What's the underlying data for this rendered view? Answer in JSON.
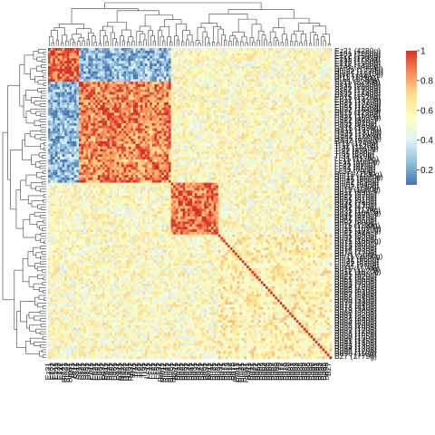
{
  "chart_data": {
    "type": "heatmap",
    "title": "",
    "xlabel": "",
    "ylabel": "",
    "colorbar": {
      "range": [
        0,
        1
      ],
      "ticks": [
        "0.2",
        "0.4",
        "0.6",
        "0.8",
        "1"
      ],
      "colors": [
        "#4575b4",
        "#91bfdb",
        "#e0f3f8",
        "#ffffbf",
        "#fee090",
        "#fc8d59",
        "#d73027"
      ]
    },
    "row_labels_visible": [
      "Ez21 (4280g)",
      "Ez31 (1860g)",
      "Ez22 (1590g)",
      "Ez11 (1700g)",
      "Ez32 (1560g)",
      "Ez12 (1500g)",
      "Ez41 (1420g)",
      "Bm21 (1350g)",
      "Bm22 (1230g)",
      "Bm31 (1010g)",
      "Bf11 (1840g)",
      "Bf12 (1730g)",
      "Ss11 (2290g)",
      "Ss12 (2130g)",
      "Ss21 (2060g)",
      "Ss22 (1980g)",
      "Ss31 (1780g)",
      "Ss32 (1640g)",
      "Ep11 (1520g)",
      "Ep12 (1410g)",
      "Ep21 (1370g)",
      "Ep22 (1280g)",
      "Ep31 (1150g)",
      "Ep32 (1040g)",
      "Pa11 (1290g)",
      "Pa12 (1180g)",
      "Pa21 (1030g)",
      "Pa22 (980g)",
      "Pa31 (910g)",
      "Pa32 (860g)",
      "Ra11 (1620g)",
      "Ra12 (1470g)",
      "Ra21 (1310g)",
      "Ra22 (1190g)",
      "Ra31 (1060g)",
      "Ra32 (970g)",
      "Tr11 (1240g)",
      "Tr12 (1120g)",
      "Tr21 (1010g)",
      "Tr22 (930g)",
      "Tr31 (880g)",
      "Tr32 (820g)",
      "Lc11 (1170g)",
      "Lc12 (1060g)",
      "Lc21 (990g)",
      "Lc22 (910g)",
      "Lc31 (850g)",
      "Lc32 (790g)",
      "Bm11 (1130g)",
      "Bm12 (1020g)",
      "Bm41 (960g)",
      "Bm42 (890g)",
      "Bm51 (840g)",
      "Bm52 (780g)",
      "Bb11 (1080g)",
      "Bb12 (990g)",
      "Bb21 (920g)",
      "Bb22 (870g)",
      "Bb31 (810g)",
      "Bb32 (760g)",
      "Bb41 (710g)",
      "Bb42 (670g)",
      "Bd31 (1120g)",
      "Bd32 (1040g)",
      "Bd41 (980g)",
      "Bd42 (910g)",
      "Bd51 (850g)",
      "Bd52 (800g)",
      "Bu11 (1190g)",
      "Bu12 (1090g)",
      "Bu21 (1010g)",
      "Bu22 (940g)",
      "Bu31 (880g)",
      "Bu32 (820g)",
      "Bd71 (1060g)",
      "Bd72 (980g)",
      "Bd73 (900g)",
      "Bd74 (830g)",
      "Bd75 (770g)",
      "Bd76 (720g)",
      "Pm11 (1050g)",
      "Pm12 (960g)",
      "Pm21 (890g)",
      "Pm22 (820g)",
      "Pm31 (770g)",
      "Bd11 (1170g)",
      "Bd12 (1070g)",
      "Bd21 (990g)",
      "Bd22 (920g)",
      "Bd61 (860g)",
      "Bd62 (800g)",
      "Bd63 (750g)",
      "Bd64 (700g)",
      "Bd65 (650g)",
      "Bd66 (610g)",
      "Bd67 (580g)",
      "Bd68 (540g)",
      "Bd69 (510g)",
      "Bd70 (480g)",
      "Bd77 (440g)",
      "Bd78 (410g)",
      "Bd79 (380g)",
      "Bd80 (350g)",
      "Bd81 (320g)",
      "Bd82 (290g)",
      "Bd83 (260g)",
      "Bd84 (230g)",
      "Bd85 (200g)",
      "Bd86 (180g)",
      "Bd87 (170g)",
      "Bd88 (160g)",
      "Bd89 (155g)",
      "Bd90 (150g)",
      "Bd91 (145g)",
      "Bd92 (140g)",
      "Bd93 (135g)",
      "Bd94 (130g)",
      "Bd95 (120g)",
      "Bd96 (110g)",
      "B27 (1779g)"
    ],
    "column_labels_visible": [
      "Ez21",
      "Ez31",
      "Ez22",
      "Ez11",
      "Ez32",
      "Ez12",
      "Ez41",
      "Bm21",
      "Bm22",
      "Bm31",
      "Bf11",
      "Bf12",
      "Ss11",
      "Ss12",
      "Ss21",
      "Ss22",
      "Ss31",
      "Ss32",
      "Ep11",
      "Ep12",
      "Ep21",
      "Ep22",
      "Ep31",
      "Ep32",
      "Pa11",
      "Pa12",
      "Pa21",
      "Pa22",
      "Pa31",
      "Pa32",
      "Ra11",
      "Ra12",
      "Ra21",
      "Ra22",
      "Ra31",
      "Ra32",
      "Tr11",
      "Tr12",
      "Tr21",
      "Tr22",
      "Tr31",
      "Tr32",
      "Lc11",
      "Lc12",
      "Lc21",
      "Lc22",
      "Lc31",
      "Lc32",
      "Bm11",
      "Bm12",
      "Bm41",
      "Bm42",
      "Bm51",
      "Bm52",
      "Bb11",
      "Bb12",
      "Bb21",
      "Bb22",
      "Bb31",
      "Bb32",
      "Bb41",
      "Bb42",
      "Bd31",
      "Bd32",
      "Bd41",
      "Bd42",
      "Bd51",
      "Bd52",
      "Bu11",
      "Bu12",
      "Bu21",
      "Bu22",
      "Bu31",
      "Bu32",
      "Bd71",
      "Bd72",
      "Bd73",
      "Bd74",
      "Bd75",
      "Bd76",
      "Pm11",
      "Pm12",
      "Pm21",
      "Pm22",
      "Pm31",
      "Bd11",
      "Bd12",
      "Bd21",
      "Bd22",
      "Bd61",
      "Bd62",
      "Bd63",
      "Bd64",
      "Bd65",
      "Bd66",
      "Bd67",
      "Bd68",
      "Bd69",
      "Bd70",
      "Bd77",
      "Bd78",
      "Bd79",
      "Bd80",
      "Bd81",
      "Bd82",
      "Bd83",
      "Bd84",
      "Bd85",
      "Bd86",
      "Bd87",
      "Bd88",
      "Bd89",
      "Bd90",
      "Bd91",
      "Bd92",
      "Bd93",
      "Bd94",
      "Bd95",
      "Bd96",
      "B27"
    ],
    "blocks": [
      {
        "rows": [
          0,
          13
        ],
        "cols": [
          0,
          13
        ],
        "value": 0.9
      },
      {
        "rows": [
          13,
          52
        ],
        "cols": [
          13,
          52
        ],
        "value": 0.85
      },
      {
        "rows": [
          0,
          13
        ],
        "cols": [
          13,
          52
        ],
        "value": 0.25
      },
      {
        "rows": [
          13,
          52
        ],
        "cols": [
          0,
          13
        ],
        "value": 0.25
      },
      {
        "rows": [
          52,
          72
        ],
        "cols": [
          52,
          72
        ],
        "value": 0.88
      },
      {
        "rows": [
          72,
          120
        ],
        "cols": [
          72,
          120
        ],
        "value": 0.6
      }
    ]
  }
}
